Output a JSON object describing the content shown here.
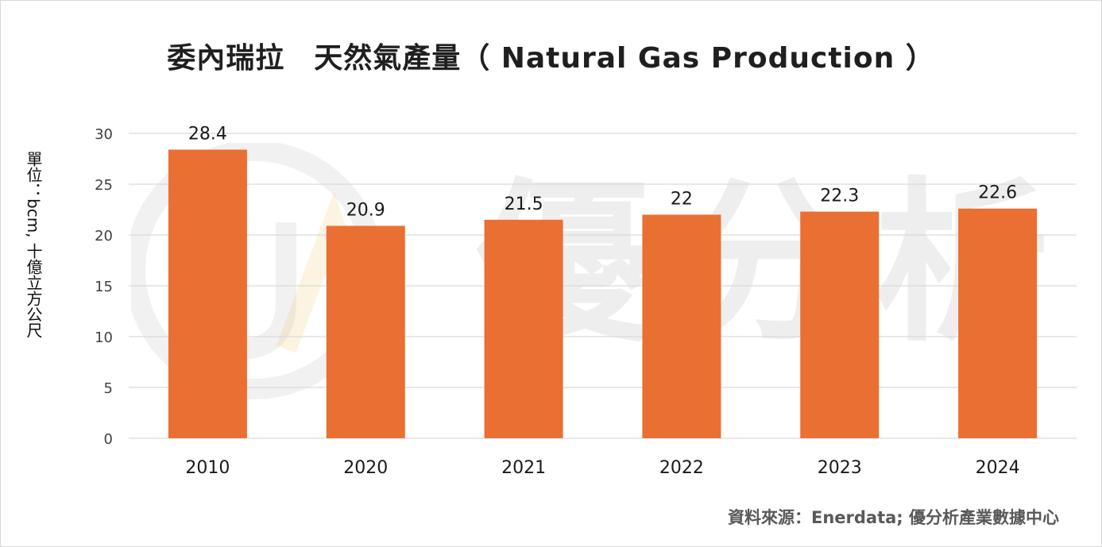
{
  "colors": {
    "bar": "#ea6f32",
    "grid": "#d9d9d9",
    "axis_text": "#404040",
    "watermark": "#b0b0b0"
  },
  "watermark": {
    "text": "優分析",
    "logo": "UA"
  },
  "chart_data": {
    "type": "bar",
    "title": "委內瑞拉　天然氣產量（ Natural Gas Production ）",
    "ylabel": "單位：bcm, 十億立方公尺",
    "xlabel": "",
    "categories": [
      "2010",
      "2020",
      "2021",
      "2022",
      "2023",
      "2024"
    ],
    "values": [
      28.4,
      20.9,
      21.5,
      22,
      22.3,
      22.6
    ],
    "value_labels": [
      "28.4",
      "20.9",
      "21.5",
      "22",
      "22.3",
      "22.6"
    ],
    "ylim": [
      0,
      30
    ],
    "yticks": [
      "0",
      "5",
      "10",
      "15",
      "20",
      "25",
      "30"
    ],
    "grid": true,
    "legend": "none"
  },
  "source": "資料來源：Enerdata; 優分析產業數據中心"
}
